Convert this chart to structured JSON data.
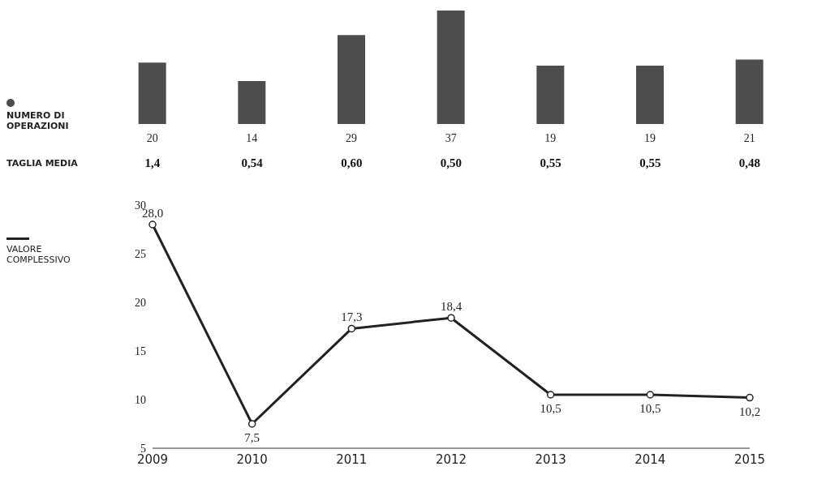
{
  "chart_data": [
    {
      "type": "bar",
      "categories": [
        "2009",
        "2010",
        "2011",
        "2012",
        "2013",
        "2014",
        "2015"
      ],
      "series": [
        {
          "name": "NUMERO DI OPERAZIONI",
          "color": "#4d4d4d",
          "values": [
            20,
            14,
            29,
            37,
            19,
            19,
            21
          ]
        }
      ],
      "data_labels": true,
      "tick_labels": false,
      "legend": "left"
    },
    {
      "type": "other",
      "title": "TAGLIA MEDIA",
      "annotations": [
        "1,4",
        "0,54",
        "0,60",
        "0,50",
        "0,55",
        "0,55",
        "0,48"
      ]
    },
    {
      "type": "line",
      "categories": [
        "2009",
        "2010",
        "2011",
        "2012",
        "2013",
        "2014",
        "2015"
      ],
      "series": [
        {
          "name": "VALORE COMPLESSIVO",
          "color": "#222222",
          "values": [
            28.0,
            7.5,
            17.3,
            18.4,
            10.5,
            10.5,
            10.2
          ],
          "value_labels": [
            "28,0",
            "7,5",
            "17,3",
            "18,4",
            "10,5",
            "10,5",
            "10,2"
          ]
        }
      ],
      "marker": "circle",
      "data_labels": true,
      "ylim": [
        5,
        30
      ],
      "yticks": [
        5,
        10,
        15,
        20,
        25,
        30
      ],
      "legend": "left",
      "grid": false
    }
  ]
}
